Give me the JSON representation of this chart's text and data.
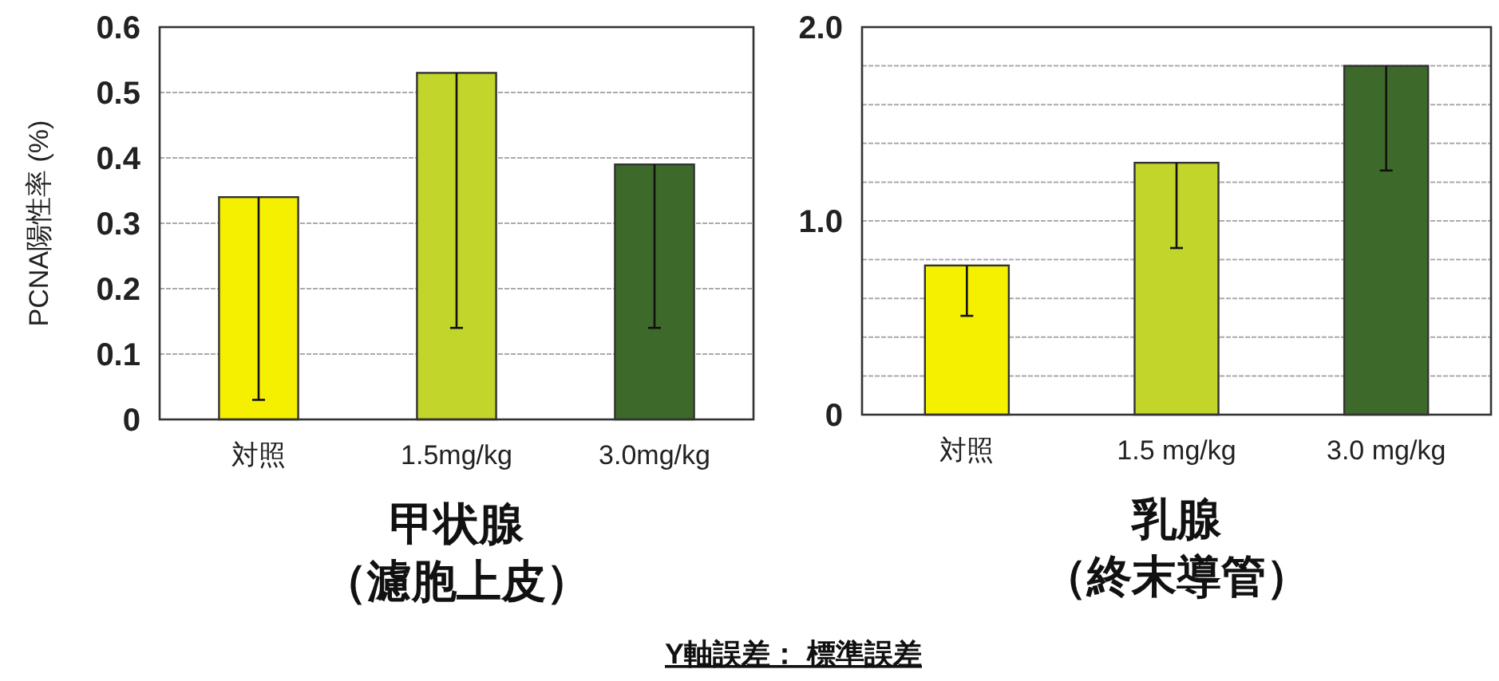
{
  "chart_data": [
    {
      "type": "bar",
      "ylabel": "PCNA陽性率 (%)",
      "xlabel": "甲状腺",
      "categories": [
        "対照",
        "1.5mg/kg",
        "3.0mg/kg"
      ],
      "values": [
        0.34,
        0.53,
        0.39
      ],
      "colors": [
        "#f5ef00",
        "#c2d52a",
        "#3d6a2a"
      ],
      "errors": [
        [
          0.03,
          0.34
        ],
        [
          0.14,
          0.53
        ],
        [
          0.14,
          0.39
        ]
      ],
      "ylim": [
        0,
        0.6
      ],
      "yticks": [
        0,
        0.1,
        0.2,
        0.3,
        0.4,
        0.5,
        0.6
      ],
      "grid": "y",
      "annotations": [
        "（濾胞上皮）"
      ]
    },
    {
      "type": "bar",
      "xlabel": "乳腺",
      "categories": [
        "対照",
        "1.5 mg/kg",
        "3.0 mg/kg"
      ],
      "values": [
        0.77,
        1.3,
        1.8
      ],
      "colors": [
        "#f5ef00",
        "#c2d52a",
        "#3d6a2a"
      ],
      "errors": [
        [
          0.51,
          0.77
        ],
        [
          0.86,
          1.3
        ],
        [
          1.26,
          1.8
        ]
      ],
      "ylim": [
        0,
        2.0
      ],
      "yticks": [
        0,
        {
          "value": 0.2,
          "label": null
        },
        {
          "value": 0.4,
          "label": null
        },
        {
          "value": 0.6,
          "label": null
        },
        {
          "value": 0.8,
          "label": null
        },
        {
          "value": 1.0,
          "label": "1.0"
        },
        {
          "value": 1.2,
          "label": null
        },
        {
          "value": 1.4,
          "label": null
        },
        {
          "value": 1.6,
          "label": null
        },
        {
          "value": 1.8,
          "label": null
        },
        {
          "value": 2.0,
          "label": "2.0"
        }
      ],
      "grid": "y",
      "annotations": [
        "（終末導管）",
        "Y軸誤差： 標準誤差"
      ]
    }
  ]
}
